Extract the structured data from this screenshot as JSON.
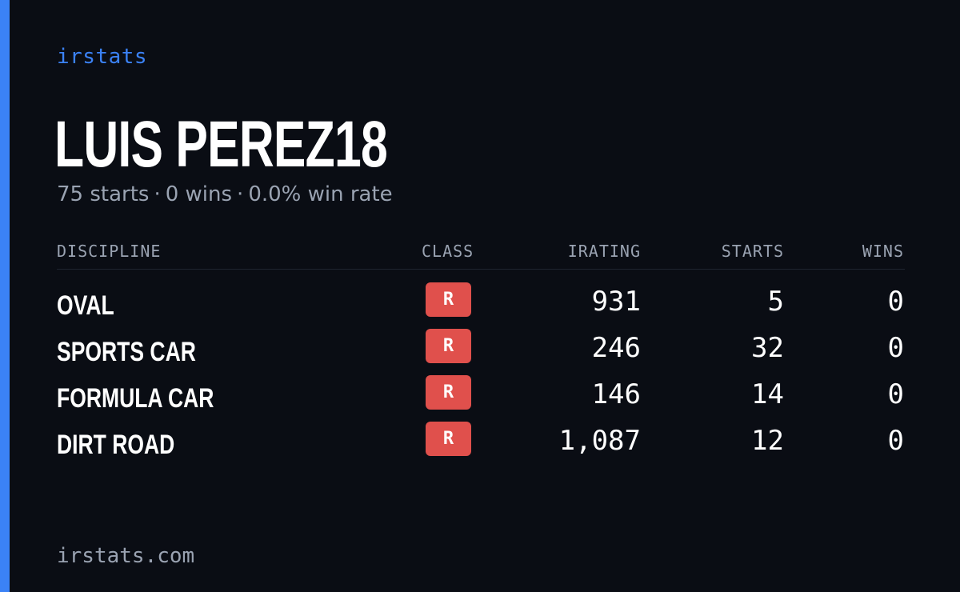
{
  "brand": "irstats",
  "player": {
    "name": "LUIS PEREZ18",
    "starts_text": "75 starts",
    "wins_text": "0 wins",
    "win_rate_text": "0.0% win rate",
    "separator": "·"
  },
  "table": {
    "headers": {
      "discipline": "DISCIPLINE",
      "class": "CLASS",
      "irating": "IRATING",
      "starts": "STARTS",
      "wins": "WINS"
    },
    "rows": [
      {
        "discipline": "OVAL",
        "class": "R",
        "irating": "931",
        "starts": "5",
        "wins": "0"
      },
      {
        "discipline": "SPORTS CAR",
        "class": "R",
        "irating": "246",
        "starts": "32",
        "wins": "0"
      },
      {
        "discipline": "FORMULA CAR",
        "class": "R",
        "irating": "146",
        "starts": "14",
        "wins": "0"
      },
      {
        "discipline": "DIRT ROAD",
        "class": "R",
        "irating": "1,087",
        "starts": "12",
        "wins": "0"
      }
    ]
  },
  "footer": "irstats.com",
  "colors": {
    "background": "#0a0d14",
    "accent": "#3b82f6",
    "badge": "#e0504c",
    "muted_text": "#9aa3b2"
  }
}
